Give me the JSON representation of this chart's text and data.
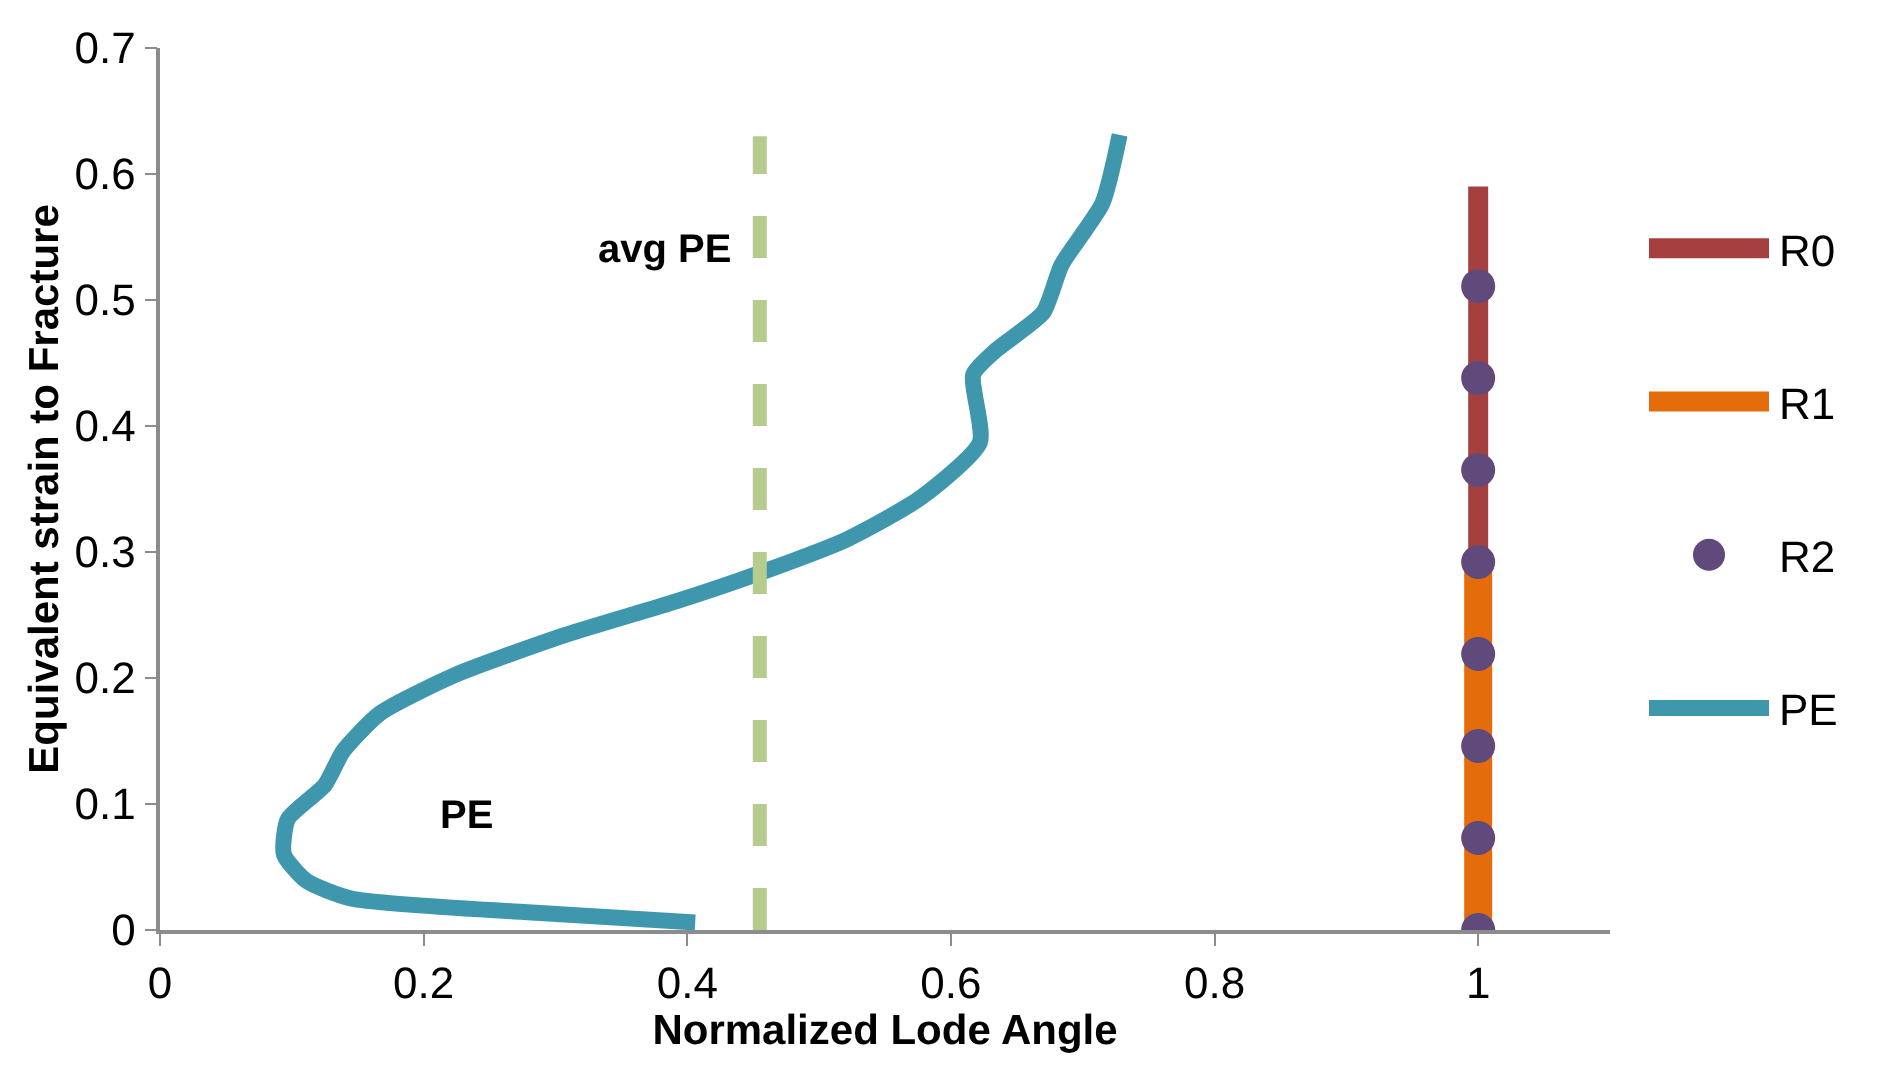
{
  "chart_data": {
    "type": "line",
    "xlabel": "Normalized Lode Angle",
    "ylabel": "Equivalent strain to Fracture",
    "xlim": [
      0,
      1.1
    ],
    "xticks": [
      0,
      0.2,
      0.4,
      0.6,
      0.8,
      1
    ],
    "ylim": [
      0,
      0.7
    ],
    "yticks": [
      0,
      0.1,
      0.2,
      0.3,
      0.4,
      0.5,
      0.6,
      0.7
    ],
    "grid": false,
    "legend": "right",
    "series": [
      {
        "name": "R0",
        "color": "#a5403e",
        "x": [
          1,
          1
        ],
        "values": [
          0,
          0.59
        ]
      },
      {
        "name": "R1",
        "color": "#e46c0a",
        "x": [
          1,
          1
        ],
        "values": [
          0,
          0.29
        ]
      },
      {
        "name": "R2",
        "type": "scatter",
        "marker": "circle",
        "color": "#604a7b",
        "x": [
          1,
          1,
          1,
          1,
          1,
          1,
          1,
          1
        ],
        "values": [
          0,
          0.073,
          0.146,
          0.219,
          0.292,
          0.365,
          0.438,
          0.511
        ]
      },
      {
        "name": "PE",
        "color": "#3f97ae",
        "x": [
          0.406,
          0.279,
          0.145,
          0.111,
          0.094,
          0.097,
          0.125,
          0.139,
          0.167,
          0.223,
          0.307,
          0.392,
          0.454,
          0.521,
          0.577,
          0.622,
          0.617,
          0.634,
          0.67,
          0.684,
          0.715,
          0.728
        ],
        "values": [
          0.006,
          0.014,
          0.025,
          0.039,
          0.06,
          0.088,
          0.115,
          0.142,
          0.172,
          0.202,
          0.234,
          0.261,
          0.283,
          0.31,
          0.343,
          0.387,
          0.441,
          0.46,
          0.49,
          0.528,
          0.577,
          0.631
        ]
      }
    ],
    "ref_lines": [
      {
        "axis": "x",
        "value": 0.455,
        "label": "avg PE",
        "color": "#b5cc8e",
        "line_style": "dashed"
      }
    ],
    "annotations": [
      "PE"
    ]
  }
}
